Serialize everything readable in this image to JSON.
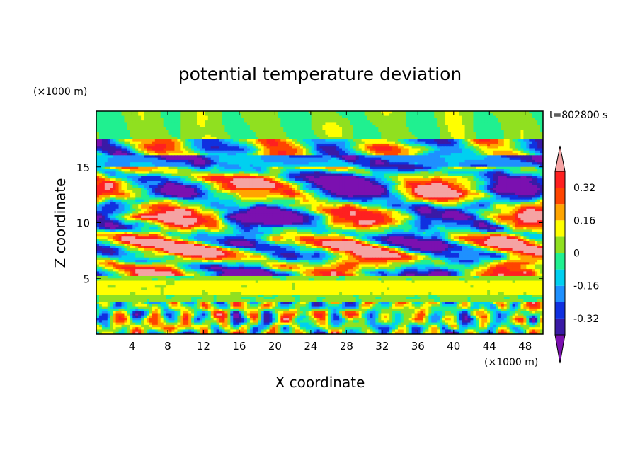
{
  "chart_data": {
    "type": "heatmap",
    "title": "potential temperature deviation",
    "xlabel": "X coordinate",
    "ylabel": "Z coordinate",
    "x_unit": "(×1000 m)",
    "y_unit": "(×1000 m)",
    "time_label": "t=802800 s",
    "xlim": [
      0,
      50
    ],
    "ylim": [
      0,
      20
    ],
    "x_ticks": [
      4,
      8,
      12,
      16,
      20,
      24,
      28,
      32,
      36,
      40,
      44,
      48
    ],
    "y_ticks": [
      5,
      10,
      15
    ],
    "colorbar": {
      "levels": [
        -0.4,
        -0.32,
        -0.24,
        -0.16,
        -0.08,
        0,
        0.08,
        0.16,
        0.24,
        0.32,
        0.4
      ],
      "colors": [
        "#7b10b0",
        "#3a1aa6",
        "#1030e0",
        "#1e90ff",
        "#00d0f0",
        "#20f090",
        "#90e020",
        "#ffff00",
        "#ffa500",
        "#ff4500",
        "#ff2020",
        "#f5a3a3"
      ],
      "tick_labels": [
        "-0.32",
        "-0.16",
        "0",
        "0.16",
        "0.32"
      ],
      "tick_values": [
        -0.32,
        -0.16,
        0,
        0.16,
        0.32
      ]
    }
  }
}
